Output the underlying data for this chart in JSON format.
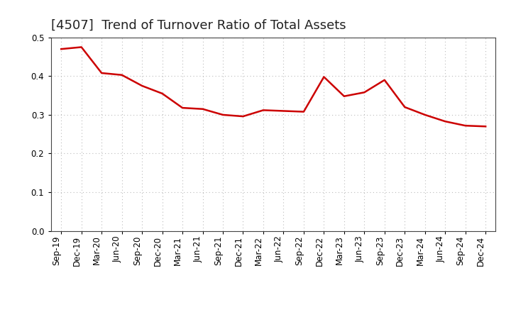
{
  "title": "[4507]  Trend of Turnover Ratio of Total Assets",
  "labels": [
    "Sep-19",
    "Dec-19",
    "Mar-20",
    "Jun-20",
    "Sep-20",
    "Dec-20",
    "Mar-21",
    "Jun-21",
    "Sep-21",
    "Dec-21",
    "Mar-22",
    "Jun-22",
    "Sep-22",
    "Dec-22",
    "Mar-23",
    "Jun-23",
    "Sep-23",
    "Dec-23",
    "Mar-24",
    "Jun-24",
    "Sep-24",
    "Dec-24"
  ],
  "values": [
    0.47,
    0.475,
    0.408,
    0.403,
    0.375,
    0.355,
    0.318,
    0.315,
    0.3,
    0.296,
    0.312,
    0.31,
    0.308,
    0.398,
    0.348,
    0.358,
    0.39,
    0.32,
    0.3,
    0.283,
    0.272,
    0.27
  ],
  "line_color": "#cc0000",
  "line_width": 1.8,
  "ylim": [
    0.0,
    0.5
  ],
  "yticks": [
    0.0,
    0.1,
    0.2,
    0.3,
    0.4,
    0.5
  ],
  "grid_color": "#bbbbbb",
  "bg_color": "#ffffff",
  "title_fontsize": 13,
  "tick_fontsize": 8.5
}
